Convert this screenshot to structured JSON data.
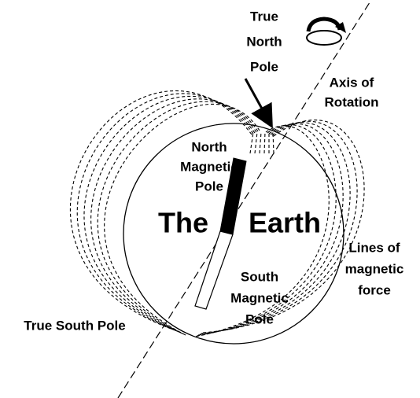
{
  "labels": {
    "true_north_pole": [
      "True",
      "North",
      "Pole"
    ],
    "axis_of_rotation": [
      "Axis of",
      "Rotation"
    ],
    "north_magnetic_pole": [
      "North",
      "Magnetic",
      "Pole"
    ],
    "the_earth": [
      "The",
      "Earth"
    ],
    "lines_of_magnetic_force": [
      "Lines of",
      "magnetic",
      "force"
    ],
    "south_magnetic_pole": [
      "South",
      "Magnetic",
      "Pole"
    ],
    "true_south_pole": [
      "True South Pole"
    ]
  }
}
